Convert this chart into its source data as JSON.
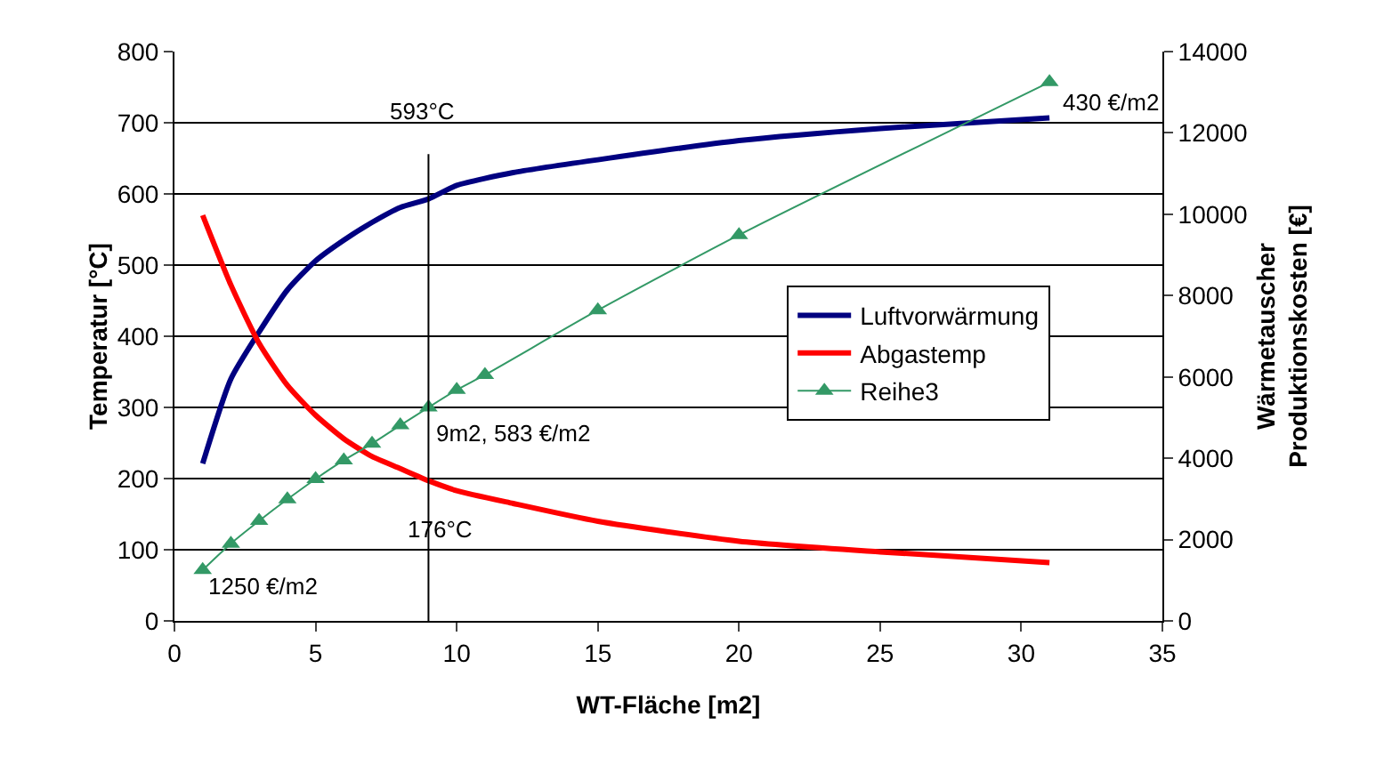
{
  "chart_data": {
    "type": "line",
    "xlabel": "WT-Fläche [m2]",
    "ylabel": "Temperatur [°C]",
    "y2label": "Wärmetauscher\nProduktionskosten [€]",
    "xlim": [
      0,
      35
    ],
    "xticks": [
      0,
      5,
      10,
      15,
      20,
      25,
      30,
      35
    ],
    "ylim": [
      0,
      800
    ],
    "yticks": [
      0,
      100,
      200,
      300,
      400,
      500,
      600,
      700,
      800
    ],
    "y2lim": [
      0,
      14000
    ],
    "y2ticks": [
      0,
      2000,
      4000,
      6000,
      8000,
      10000,
      12000,
      14000
    ],
    "grid": "y",
    "legend": "right",
    "series": [
      {
        "name": "Luftvorwärmung",
        "color": "#000080",
        "marker": "none",
        "x": [
          1,
          2,
          3,
          4,
          5,
          6,
          7,
          8,
          9,
          10,
          12,
          15,
          20,
          25,
          31
        ],
        "values": [
          221,
          340,
          406,
          465,
          506,
          535,
          560,
          581,
          593,
          612,
          630,
          648,
          675,
          692,
          707
        ]
      },
      {
        "name": "Abgastemp",
        "color": "#ff0000",
        "marker": "none",
        "x": [
          1,
          2,
          3,
          4,
          5,
          6,
          7,
          8,
          9,
          10,
          12,
          15,
          20,
          25,
          31
        ],
        "values": [
          570,
          472,
          390,
          331,
          289,
          256,
          231,
          214,
          197,
          183,
          165,
          140,
          112,
          97,
          82
        ]
      },
      {
        "name": "Reihe3",
        "color": "#339966",
        "marker": "triangle",
        "axis": "y2",
        "x": [
          1,
          2,
          3,
          4,
          5,
          6,
          7,
          8,
          9,
          10,
          11,
          15,
          20,
          31
        ],
        "values": [
          1250,
          1900,
          2460,
          2990,
          3490,
          3950,
          4360,
          4810,
          5250,
          5680,
          6050,
          7640,
          9490,
          13250
        ]
      }
    ],
    "ref_lines": [
      {
        "axis": "x",
        "value": 9,
        "color": "#000000"
      }
    ],
    "annotations": [
      "593°C",
      "9m2, 583 €/m2",
      "176°C",
      "1250 €/m2",
      "430 €/m2"
    ]
  }
}
